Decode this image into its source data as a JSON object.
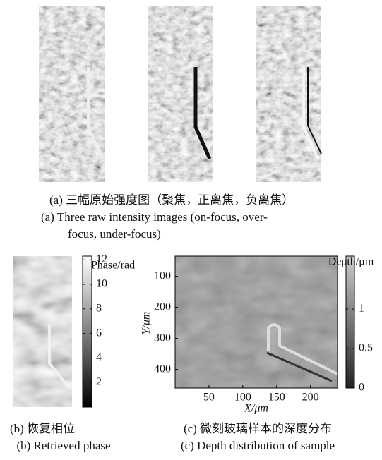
{
  "panel_a": {
    "caption_cn": "(a) 三幅原始强度图（聚焦，正离焦，负离焦）",
    "caption_en": "(a) Three raw intensity images (on-focus, over-focus, under-focus)"
  },
  "panel_b": {
    "caption_cn": "(b) 恢复相位",
    "caption_en": "(b) Retrieved phase",
    "colorbar": {
      "label": "Phase/rad",
      "lim": [
        0,
        12.3
      ],
      "ticks": [
        2,
        4,
        6,
        8,
        10,
        12
      ]
    }
  },
  "panel_c": {
    "caption_cn": "(c) 微刻玻璃样本的深度分布",
    "caption_en": "(c) Depth distribution of sample",
    "xlabel": "X/μm",
    "ylabel": "Y/μm",
    "xlim": [
      0,
      240
    ],
    "xticks": [
      50,
      100,
      150,
      200
    ],
    "ylim": [
      35,
      460
    ],
    "yticks": [
      100,
      200,
      300,
      400
    ],
    "colorbar": {
      "label": "Depth/μm",
      "lim": [
        0,
        1.67
      ],
      "ticks": [
        0,
        0.5,
        1
      ]
    }
  }
}
